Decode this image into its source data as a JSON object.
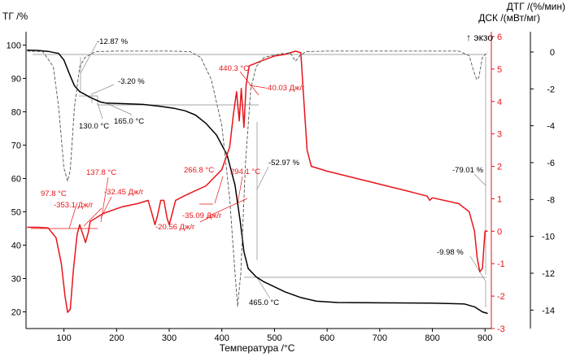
{
  "chart_data": {
    "type": "line",
    "title": "",
    "xlabel": "Температура /°C",
    "ylabel_left": "ТГ /%",
    "ylabel_right_1": "ДСК /(мВт/мг)",
    "ylabel_right_2": "ДТГ /(%/мин)",
    "exo_label": "↑ экзо",
    "xlim": [
      28,
      912
    ],
    "ylim_left": [
      15,
      104
    ],
    "ylim_right_1": [
      -3,
      6.15
    ],
    "ylim_right_2": [
      -15,
      1.1
    ],
    "x_ticks": [
      "100",
      "200",
      "300",
      "400",
      "500",
      "600",
      "700",
      "800",
      "900"
    ],
    "x_tick_values": [
      100,
      200,
      300,
      400,
      500,
      600,
      700,
      800,
      900
    ],
    "y_left_ticks": [
      "20",
      "30",
      "40",
      "50",
      "60",
      "70",
      "80",
      "90",
      "100"
    ],
    "y_left_tick_values": [
      20,
      30,
      40,
      50,
      60,
      70,
      80,
      90,
      100
    ],
    "y_right1_ticks": [
      "-3",
      "-2",
      "-1",
      "0",
      "1",
      "2",
      "3",
      "4",
      "5",
      "6"
    ],
    "y_right1_tick_values": [
      -3,
      -2,
      -1,
      0,
      1,
      2,
      3,
      4,
      5,
      6
    ],
    "y_right2_ticks": [
      "0",
      "-2",
      "-4",
      "-6",
      "-8",
      "-10",
      "-12",
      "-14"
    ],
    "y_right2_tick_values": [
      0,
      -2,
      -4,
      -6,
      -8,
      -10,
      -12,
      -14
    ],
    "colors": {
      "tg": "#000000",
      "dsc": "#e8141a",
      "dtg": "#555555"
    },
    "series": [
      {
        "axis": "left",
        "points": [
          [
            30,
            98.5
          ],
          [
            50,
            98.4
          ],
          [
            70,
            98.1
          ],
          [
            90,
            97.5
          ],
          [
            100,
            95.5
          ],
          [
            110,
            91.5
          ],
          [
            120,
            87.8
          ],
          [
            130,
            86
          ],
          [
            140,
            85.2
          ],
          [
            150,
            84.3
          ],
          [
            160,
            83.6
          ],
          [
            170,
            82.9
          ],
          [
            180,
            82.6
          ],
          [
            220,
            82.4
          ],
          [
            250,
            82.2
          ],
          [
            280,
            81.7
          ],
          [
            310,
            81
          ],
          [
            330,
            80.3
          ],
          [
            350,
            79
          ],
          [
            370,
            76.5
          ],
          [
            390,
            73
          ],
          [
            410,
            67
          ],
          [
            425,
            58
          ],
          [
            435,
            47
          ],
          [
            442,
            38
          ],
          [
            450,
            33
          ],
          [
            465,
            30.5
          ],
          [
            480,
            29
          ],
          [
            500,
            27.5
          ],
          [
            520,
            26
          ],
          [
            550,
            24.3
          ],
          [
            580,
            23.2
          ],
          [
            620,
            22.8
          ],
          [
            700,
            22.7
          ],
          [
            800,
            22.6
          ],
          [
            860,
            22.4
          ],
          [
            880,
            21.5
          ],
          [
            895,
            20
          ],
          [
            905,
            19.5
          ]
        ]
      },
      {
        "axis": "right1",
        "points": [
          [
            30,
            0.12
          ],
          [
            50,
            0.12
          ],
          [
            70,
            0.1
          ],
          [
            85,
            -0.2
          ],
          [
            95,
            -1
          ],
          [
            102,
            -2
          ],
          [
            107,
            -2.5
          ],
          [
            112,
            -2.4
          ],
          [
            118,
            -1.2
          ],
          [
            125,
            -0.1
          ],
          [
            130,
            0.2
          ],
          [
            136,
            -0.1
          ],
          [
            141,
            -0.35
          ],
          [
            146,
            -0.05
          ],
          [
            150,
            0.3
          ],
          [
            175,
            0.55
          ],
          [
            210,
            0.75
          ],
          [
            240,
            0.85
          ],
          [
            260,
            0.95
          ],
          [
            268,
            0.5
          ],
          [
            273,
            0.2
          ],
          [
            278,
            0.5
          ],
          [
            284,
            0.95
          ],
          [
            290,
            0.95
          ],
          [
            296,
            0.4
          ],
          [
            300,
            0.2
          ],
          [
            305,
            0.5
          ],
          [
            312,
            0.95
          ],
          [
            330,
            1.1
          ],
          [
            370,
            1.4
          ],
          [
            400,
            1.9
          ],
          [
            415,
            2.6
          ],
          [
            422,
            3.6
          ],
          [
            428,
            4.3
          ],
          [
            433,
            3.4
          ],
          [
            437,
            4.4
          ],
          [
            442,
            3.2
          ],
          [
            446,
            4.5
          ],
          [
            452,
            5.1
          ],
          [
            475,
            5.25
          ],
          [
            500,
            5.4
          ],
          [
            520,
            5.45
          ],
          [
            540,
            5.55
          ],
          [
            550,
            5.5
          ],
          [
            556,
            4
          ],
          [
            562,
            2.5
          ],
          [
            570,
            2
          ],
          [
            600,
            1.85
          ],
          [
            650,
            1.65
          ],
          [
            700,
            1.45
          ],
          [
            750,
            1.25
          ],
          [
            790,
            1.08
          ],
          [
            795,
            0.95
          ],
          [
            800,
            1.03
          ],
          [
            850,
            0.85
          ],
          [
            870,
            0.6
          ],
          [
            880,
            0
          ],
          [
            885,
            -0.8
          ],
          [
            890,
            -1.25
          ],
          [
            895,
            -1.15
          ],
          [
            900,
            0
          ],
          [
            905,
            0
          ]
        ]
      },
      {
        "axis": "right2",
        "dashed": true,
        "points": [
          [
            30,
            0.05
          ],
          [
            60,
            0.02
          ],
          [
            80,
            -0.8
          ],
          [
            90,
            -3
          ],
          [
            100,
            -6.3
          ],
          [
            107,
            -7
          ],
          [
            112,
            -6.4
          ],
          [
            120,
            -3
          ],
          [
            130,
            -0.8
          ],
          [
            140,
            -0.3
          ],
          [
            160,
            0.02
          ],
          [
            200,
            0.05
          ],
          [
            300,
            0.05
          ],
          [
            340,
            0.02
          ],
          [
            360,
            -0.3
          ],
          [
            380,
            -1.5
          ],
          [
            400,
            -4
          ],
          [
            415,
            -8
          ],
          [
            425,
            -12
          ],
          [
            430,
            -13.8
          ],
          [
            436,
            -12
          ],
          [
            445,
            -6
          ],
          [
            455,
            -2
          ],
          [
            465,
            -0.8
          ],
          [
            480,
            -0.3
          ],
          [
            510,
            -0.1
          ],
          [
            530,
            -0.05
          ],
          [
            540,
            -0.5
          ],
          [
            548,
            -0.2
          ],
          [
            560,
            0.02
          ],
          [
            600,
            0.05
          ],
          [
            700,
            0.05
          ],
          [
            800,
            0.05
          ],
          [
            850,
            0.05
          ],
          [
            870,
            -0.2
          ],
          [
            878,
            -1
          ],
          [
            884,
            -1.5
          ],
          [
            888,
            -1.4
          ],
          [
            895,
            -0.3
          ],
          [
            905,
            0
          ]
        ]
      }
    ],
    "annotations": [
      {
        "text": "-12.87 %",
        "color": "black"
      },
      {
        "text": "-3.20 %",
        "color": "black"
      },
      {
        "text": "130.0 °C",
        "color": "black"
      },
      {
        "text": "165.0 °C",
        "color": "black"
      },
      {
        "text": "-52.97 %",
        "color": "black"
      },
      {
        "text": "465.0 °C",
        "color": "black"
      },
      {
        "text": "-79.01 %",
        "color": "black"
      },
      {
        "text": "-9.98 %",
        "color": "black"
      },
      {
        "text": "440.3 °C",
        "color": "red"
      },
      {
        "text": "-40.03 Дж/г",
        "color": "red"
      },
      {
        "text": "97.8 °C",
        "color": "red"
      },
      {
        "text": "137.8 °C",
        "color": "red"
      },
      {
        "text": "-353.1 Дж/г",
        "color": "red"
      },
      {
        "text": "-32.45 Дж/г",
        "color": "red"
      },
      {
        "text": "266.8 °C",
        "color": "red"
      },
      {
        "text": "294.1 °C",
        "color": "red"
      },
      {
        "text": "-20.56 Дж/г",
        "color": "red"
      },
      {
        "text": "-35.09 Дж/г",
        "color": "red"
      }
    ]
  }
}
